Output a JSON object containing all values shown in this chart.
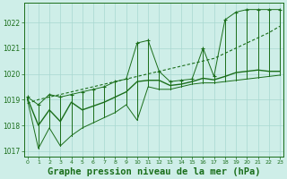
{
  "title": "Graphe pression niveau de la mer (hPa)",
  "hours": [
    0,
    1,
    2,
    3,
    4,
    5,
    6,
    7,
    8,
    9,
    10,
    11,
    12,
    13,
    14,
    15,
    16,
    17,
    18,
    19,
    20,
    21,
    22,
    23
  ],
  "max_vals": [
    1019.1,
    1018.8,
    1019.2,
    1019.1,
    1019.2,
    1019.3,
    1019.4,
    1019.5,
    1019.7,
    1019.8,
    1021.2,
    1021.3,
    1020.1,
    1019.7,
    1019.75,
    1019.8,
    1021.0,
    1019.9,
    1022.1,
    1022.4,
    1022.5,
    1022.5,
    1022.5,
    1022.5
  ],
  "min_vals": [
    1019.0,
    1017.1,
    1017.9,
    1017.2,
    1017.6,
    1017.9,
    1018.1,
    1018.3,
    1018.5,
    1018.8,
    1018.2,
    1019.5,
    1019.4,
    1019.4,
    1019.5,
    1019.6,
    1019.65,
    1019.65,
    1019.7,
    1019.75,
    1019.8,
    1019.85,
    1019.9,
    1019.95
  ],
  "mean_vals": [
    1019.05,
    1018.0,
    1018.6,
    1018.15,
    1018.9,
    1018.6,
    1018.75,
    1018.9,
    1019.1,
    1019.3,
    1019.7,
    1019.75,
    1019.75,
    1019.55,
    1019.6,
    1019.7,
    1019.83,
    1019.77,
    1019.9,
    1020.05,
    1020.1,
    1020.15,
    1020.1,
    1020.1
  ],
  "trend_vals": [
    1018.85,
    1019.0,
    1019.1,
    1019.2,
    1019.3,
    1019.4,
    1019.5,
    1019.6,
    1019.7,
    1019.8,
    1019.9,
    1020.0,
    1020.1,
    1020.2,
    1020.3,
    1020.4,
    1020.5,
    1020.6,
    1020.8,
    1021.0,
    1021.2,
    1021.4,
    1021.6,
    1021.85
  ],
  "line_color": "#1a6e1a",
  "bg_color": "#ceeee8",
  "grid_color": "#a8d8d0",
  "ylim": [
    1016.8,
    1022.75
  ],
  "yticks": [
    1017,
    1018,
    1019,
    1020,
    1021,
    1022
  ],
  "title_fontsize": 7.5
}
